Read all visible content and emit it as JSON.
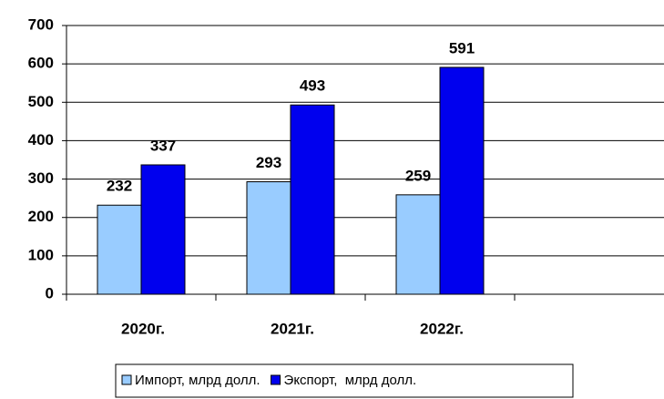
{
  "chart_data": {
    "type": "bar",
    "categories": [
      "2020г.",
      "2021г.",
      "2022г.",
      null
    ],
    "series": [
      {
        "name": "Импорт, млрд долл.",
        "color": "#99ccff",
        "values": [
          232,
          293,
          259,
          null
        ]
      },
      {
        "name": "Экспорт,  млрд долл.",
        "color": "#0000ee",
        "values": [
          337,
          493,
          591,
          null
        ]
      }
    ],
    "ylim": [
      0,
      700
    ],
    "yticks": [
      0,
      100,
      200,
      300,
      400,
      500,
      600,
      700
    ],
    "grid": true,
    "legend": "bottom"
  }
}
